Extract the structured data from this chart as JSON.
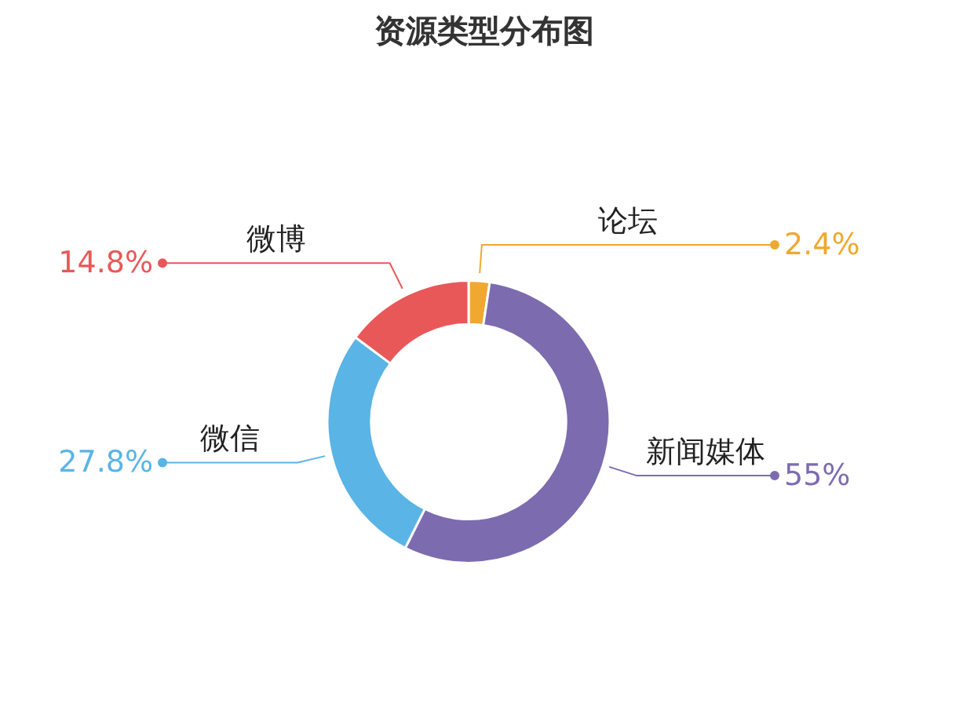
{
  "chart_data": {
    "type": "donut",
    "title": "资源类型分布图",
    "categories": [
      "论坛",
      "新闻媒体",
      "微信",
      "微博"
    ],
    "values": [
      2.4,
      55,
      27.8,
      14.8
    ],
    "colors": [
      "#f0a830",
      "#7d6bb0",
      "#5ab4e5",
      "#e85858"
    ],
    "value_labels": [
      "2.4%",
      "55%",
      "27.8%",
      "14.8%"
    ]
  }
}
